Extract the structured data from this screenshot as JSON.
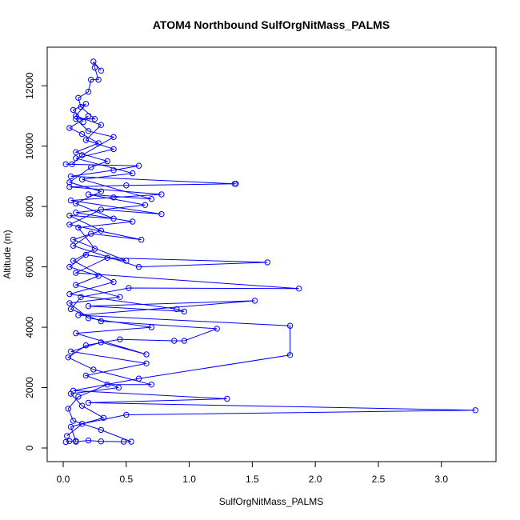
{
  "chart_data": {
    "type": "line",
    "title": "ATOM4 Northbound SulfOrgNitMass_PALMS",
    "xlabel": "SulfOrgNitMass_PALMS",
    "ylabel": "Altitude (m)",
    "xlim": [
      0,
      3.3
    ],
    "ylim": [
      0,
      12800
    ],
    "xticks": [
      0.0,
      0.5,
      1.0,
      1.5,
      2.0,
      2.5,
      3.0
    ],
    "xtick_labels": [
      "0.0",
      "0.5",
      "1.0",
      "1.5",
      "2.0",
      "2.5",
      "3.0"
    ],
    "yticks": [
      0,
      2000,
      4000,
      6000,
      8000,
      10000,
      12000
    ],
    "ytick_labels": [
      "0",
      "2000",
      "4000",
      "6000",
      "8000",
      "10000",
      "12000"
    ],
    "grid": false,
    "legend": "none",
    "series": [
      {
        "color": "#0000ff",
        "marker": "open-circle",
        "points": [
          [
            0.02,
            200
          ],
          [
            0.05,
            230
          ],
          [
            0.1,
            210
          ],
          [
            0.2,
            250
          ],
          [
            0.3,
            220
          ],
          [
            0.48,
            210
          ],
          [
            0.54,
            210
          ],
          [
            0.3,
            600
          ],
          [
            0.08,
            900
          ],
          [
            0.04,
            1300
          ],
          [
            0.12,
            1700
          ],
          [
            0.35,
            2100
          ],
          [
            0.7,
            2100
          ],
          [
            0.24,
            2600
          ],
          [
            0.04,
            3000
          ],
          [
            0.18,
            3400
          ],
          [
            0.45,
            3600
          ],
          [
            0.88,
            3550
          ],
          [
            0.96,
            3550
          ],
          [
            1.22,
            3950
          ],
          [
            0.3,
            4200
          ],
          [
            0.06,
            4600
          ],
          [
            0.14,
            5000
          ],
          [
            0.52,
            5300
          ],
          [
            1.87,
            5280
          ],
          [
            0.1,
            5800
          ],
          [
            0.35,
            6300
          ],
          [
            1.62,
            6150
          ],
          [
            0.6,
            6000
          ],
          [
            0.08,
            6700
          ],
          [
            0.22,
            7100
          ],
          [
            0.62,
            6900
          ],
          [
            0.05,
            7400
          ],
          [
            0.3,
            7900
          ],
          [
            0.78,
            7750
          ],
          [
            0.06,
            8200
          ],
          [
            0.4,
            8300
          ],
          [
            0.78,
            8400
          ],
          [
            0.05,
            8650
          ],
          [
            0.5,
            8700
          ],
          [
            1.37,
            8750
          ],
          [
            1.36,
            8750
          ],
          [
            0.06,
            9000
          ],
          [
            0.4,
            9200
          ],
          [
            0.6,
            9350
          ],
          [
            0.02,
            9400
          ],
          [
            0.07,
            9400
          ],
          [
            0.15,
            9700
          ],
          [
            0.4,
            10300
          ],
          [
            0.2,
            10500
          ],
          [
            0.1,
            10900
          ],
          [
            0.25,
            10900
          ],
          [
            0.14,
            11300
          ],
          [
            0.12,
            11600
          ],
          [
            0.2,
            11800
          ],
          [
            0.22,
            12200
          ],
          [
            0.28,
            12200
          ],
          [
            0.25,
            12600
          ],
          [
            0.24,
            12800
          ],
          [
            0.3,
            12500
          ]
        ]
      },
      {
        "color": "#0000ff",
        "marker": "open-circle",
        "points": [
          [
            0.03,
            400
          ],
          [
            0.15,
            800
          ],
          [
            0.5,
            1100
          ],
          [
            3.27,
            1250
          ],
          [
            0.2,
            1500
          ],
          [
            1.3,
            1630
          ],
          [
            0.08,
            1900
          ],
          [
            0.6,
            2300
          ],
          [
            1.8,
            3080
          ],
          [
            1.8,
            4050
          ],
          [
            0.12,
            4400
          ],
          [
            1.52,
            4880
          ],
          [
            0.2,
            4700
          ],
          [
            0.96,
            4520
          ],
          [
            0.9,
            4600
          ],
          [
            0.05,
            5100
          ],
          [
            0.4,
            5500
          ],
          [
            0.08,
            6200
          ],
          [
            0.25,
            6600
          ],
          [
            0.12,
            7300
          ],
          [
            0.55,
            7500
          ],
          [
            0.1,
            7800
          ],
          [
            0.65,
            8050
          ],
          [
            0.2,
            8400
          ],
          [
            0.7,
            8250
          ],
          [
            0.15,
            8900
          ],
          [
            0.55,
            9100
          ],
          [
            0.1,
            9600
          ],
          [
            0.4,
            9900
          ],
          [
            0.18,
            10200
          ],
          [
            0.3,
            10700
          ],
          [
            0.1,
            11000
          ],
          [
            0.18,
            11400
          ],
          [
            0.08,
            11200
          ],
          [
            0.16,
            10800
          ]
        ]
      },
      {
        "color": "#0000ff",
        "marker": "open-circle",
        "points": [
          [
            0.1,
            230
          ],
          [
            0.06,
            700
          ],
          [
            0.32,
            1000
          ],
          [
            0.15,
            1400
          ],
          [
            0.06,
            1800
          ],
          [
            0.44,
            2000
          ],
          [
            0.18,
            2400
          ],
          [
            0.66,
            2800
          ],
          [
            0.06,
            3200
          ],
          [
            0.3,
            3500
          ],
          [
            0.66,
            3100
          ],
          [
            0.1,
            3800
          ],
          [
            0.7,
            4000
          ],
          [
            0.2,
            4300
          ],
          [
            0.05,
            4800
          ],
          [
            0.45,
            5000
          ],
          [
            0.1,
            5400
          ],
          [
            0.28,
            5700
          ],
          [
            0.05,
            6000
          ],
          [
            0.18,
            6400
          ],
          [
            0.5,
            6200
          ],
          [
            0.08,
            6900
          ],
          [
            0.3,
            7200
          ],
          [
            0.05,
            7700
          ],
          [
            0.4,
            7600
          ],
          [
            0.1,
            8100
          ],
          [
            0.3,
            8500
          ],
          [
            0.05,
            8800
          ],
          [
            0.22,
            9300
          ],
          [
            0.35,
            9500
          ],
          [
            0.1,
            9800
          ],
          [
            0.28,
            10100
          ],
          [
            0.15,
            10400
          ],
          [
            0.05,
            10600
          ],
          [
            0.2,
            11000
          ]
        ]
      }
    ]
  }
}
